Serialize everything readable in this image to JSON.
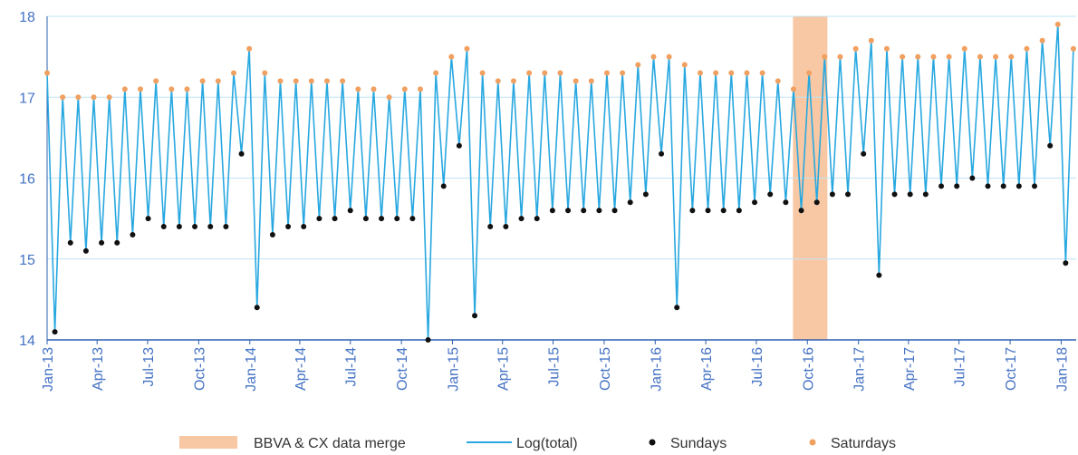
{
  "chart_data": {
    "type": "line",
    "x": [
      0,
      14,
      28,
      42,
      56,
      70,
      84,
      98,
      112,
      126,
      140,
      154,
      168,
      182,
      196,
      210,
      224,
      238,
      252,
      266,
      280,
      294,
      308,
      322,
      336,
      350,
      364,
      378,
      392,
      406,
      420,
      434,
      448,
      462,
      476,
      490,
      504,
      518,
      532,
      546,
      560,
      574,
      588,
      602,
      616,
      630,
      644,
      658,
      672,
      686,
      700,
      714,
      728,
      742,
      756,
      770,
      784,
      798,
      812,
      826,
      840,
      854,
      868,
      882,
      896,
      910,
      924,
      938,
      952,
      966,
      980,
      994,
      1008,
      1022,
      1036,
      1050,
      1064,
      1078,
      1092,
      1106,
      1120,
      1134,
      1148,
      1162,
      1176,
      1190,
      1204,
      1218,
      1232,
      1246,
      1260,
      1274,
      1288,
      1302,
      1316,
      1330,
      1344,
      1358,
      1372,
      1386,
      1400,
      1414,
      1428,
      1442,
      1456,
      1470,
      1484,
      1498,
      1512,
      1526,
      1540,
      1554,
      1568,
      1582,
      1596,
      1610,
      1624,
      1638,
      1652,
      1666,
      1680,
      1694,
      1708,
      1722,
      1736,
      1750,
      1764,
      1778,
      1792,
      1806,
      1820,
      1834,
      1848
    ],
    "series": [
      {
        "name": "Log(total)",
        "color": "#29a8e0",
        "values": [
          17.3,
          14.1,
          17.0,
          15.2,
          17.0,
          15.1,
          17.0,
          15.2,
          17.0,
          15.2,
          17.1,
          15.3,
          17.1,
          15.5,
          17.2,
          15.4,
          17.1,
          15.4,
          17.1,
          15.4,
          17.2,
          15.4,
          17.2,
          15.4,
          17.3,
          16.3,
          17.6,
          14.4,
          17.3,
          15.3,
          17.2,
          15.4,
          17.2,
          15.4,
          17.2,
          15.5,
          17.2,
          15.5,
          17.2,
          15.6,
          17.1,
          15.5,
          17.1,
          15.5,
          17.0,
          15.5,
          17.1,
          15.5,
          17.1,
          14.0,
          17.3,
          15.9,
          17.5,
          16.4,
          17.6,
          14.3,
          17.3,
          15.4,
          17.2,
          15.4,
          17.2,
          15.5,
          17.3,
          15.5,
          17.3,
          15.6,
          17.3,
          15.6,
          17.2,
          15.6,
          17.2,
          15.6,
          17.3,
          15.6,
          17.3,
          15.7,
          17.4,
          15.8,
          17.5,
          16.3,
          17.5,
          14.4,
          17.4,
          15.6,
          17.3,
          15.6,
          17.3,
          15.6,
          17.3,
          15.6,
          17.3,
          15.7,
          17.3,
          15.8,
          17.2,
          15.7,
          17.1,
          15.6,
          17.3,
          15.7,
          17.5,
          15.8,
          17.5,
          15.8,
          17.6,
          16.3,
          17.7,
          14.8,
          17.6,
          15.8,
          17.5,
          15.8,
          17.5,
          15.8,
          17.5,
          15.9,
          17.5,
          15.9,
          17.6,
          16.0,
          17.5,
          15.9,
          17.5,
          15.9,
          17.5,
          15.9,
          17.6,
          15.9,
          17.7,
          16.4,
          17.9,
          14.95,
          17.6
        ]
      },
      {
        "name": "Sundays",
        "color": "#111111",
        "values": [
          null,
          14.1,
          null,
          15.2,
          null,
          15.1,
          null,
          15.2,
          null,
          15.2,
          null,
          15.3,
          null,
          15.5,
          null,
          15.4,
          null,
          15.4,
          null,
          15.4,
          null,
          15.4,
          null,
          15.4,
          null,
          16.3,
          null,
          14.4,
          null,
          15.3,
          null,
          15.4,
          null,
          15.4,
          null,
          15.5,
          null,
          15.5,
          null,
          15.6,
          null,
          15.5,
          null,
          15.5,
          null,
          15.5,
          null,
          15.5,
          null,
          14.0,
          null,
          15.9,
          null,
          16.4,
          null,
          14.3,
          null,
          15.4,
          null,
          15.4,
          null,
          15.5,
          null,
          15.5,
          null,
          15.6,
          null,
          15.6,
          null,
          15.6,
          null,
          15.6,
          null,
          15.6,
          null,
          15.7,
          null,
          15.8,
          null,
          16.3,
          null,
          14.4,
          null,
          15.6,
          null,
          15.6,
          null,
          15.6,
          null,
          15.6,
          null,
          15.7,
          null,
          15.8,
          null,
          15.7,
          null,
          15.6,
          null,
          15.7,
          null,
          15.8,
          null,
          15.8,
          null,
          16.3,
          null,
          14.8,
          null,
          15.8,
          null,
          15.8,
          null,
          15.8,
          null,
          15.9,
          null,
          15.9,
          null,
          16.0,
          null,
          15.9,
          null,
          15.9,
          null,
          15.9,
          null,
          15.9,
          null,
          16.4,
          null,
          14.95,
          null
        ]
      },
      {
        "name": "Saturdays",
        "color": "#f0a060",
        "values": [
          17.3,
          null,
          17.0,
          null,
          17.0,
          null,
          17.0,
          null,
          17.0,
          null,
          17.1,
          null,
          17.1,
          null,
          17.2,
          null,
          17.1,
          null,
          17.1,
          null,
          17.2,
          null,
          17.2,
          null,
          17.3,
          null,
          17.6,
          null,
          17.3,
          null,
          17.2,
          null,
          17.2,
          null,
          17.2,
          null,
          17.2,
          null,
          17.2,
          null,
          17.1,
          null,
          17.1,
          null,
          17.0,
          null,
          17.1,
          null,
          17.1,
          null,
          17.3,
          null,
          17.5,
          null,
          17.6,
          null,
          17.3,
          null,
          17.2,
          null,
          17.2,
          null,
          17.3,
          null,
          17.3,
          null,
          17.3,
          null,
          17.2,
          null,
          17.2,
          null,
          17.3,
          null,
          17.3,
          null,
          17.4,
          null,
          17.5,
          null,
          17.5,
          null,
          17.4,
          null,
          17.3,
          null,
          17.3,
          null,
          17.3,
          null,
          17.3,
          null,
          17.3,
          null,
          17.2,
          null,
          17.1,
          null,
          17.3,
          null,
          17.5,
          null,
          17.5,
          null,
          17.6,
          null,
          17.7,
          null,
          17.6,
          null,
          17.5,
          null,
          17.5,
          null,
          17.5,
          null,
          17.5,
          null,
          17.6,
          null,
          17.5,
          null,
          17.5,
          null,
          17.5,
          null,
          17.6,
          null,
          17.7,
          null,
          17.9,
          null,
          17.6
        ]
      }
    ],
    "band": {
      "name": "BBVA & CX data merge",
      "color": "#f8c8a4",
      "xlim": [
        1343,
        1405
      ]
    },
    "xlim": [
      0,
      1853
    ],
    "xticks": [
      {
        "value": 0,
        "label": "Jan-13"
      },
      {
        "value": 90,
        "label": "Apr-13"
      },
      {
        "value": 181,
        "label": "Jul-13"
      },
      {
        "value": 273,
        "label": "Oct-13"
      },
      {
        "value": 365,
        "label": "Jan-14"
      },
      {
        "value": 455,
        "label": "Apr-14"
      },
      {
        "value": 546,
        "label": "Jul-14"
      },
      {
        "value": 638,
        "label": "Oct-14"
      },
      {
        "value": 730,
        "label": "Jan-15"
      },
      {
        "value": 820,
        "label": "Apr-15"
      },
      {
        "value": 911,
        "label": "Jul-15"
      },
      {
        "value": 1003,
        "label": "Oct-15"
      },
      {
        "value": 1095,
        "label": "Jan-16"
      },
      {
        "value": 1186,
        "label": "Apr-16"
      },
      {
        "value": 1277,
        "label": "Jul-16"
      },
      {
        "value": 1369,
        "label": "Oct-16"
      },
      {
        "value": 1461,
        "label": "Jan-17"
      },
      {
        "value": 1551,
        "label": "Apr-17"
      },
      {
        "value": 1642,
        "label": "Jul-17"
      },
      {
        "value": 1734,
        "label": "Oct-17"
      },
      {
        "value": 1826,
        "label": "Jan-18"
      }
    ],
    "ylim": [
      14,
      18
    ],
    "yticks": [
      14,
      15,
      16,
      17,
      18
    ],
    "grid": true,
    "legend": "bottom"
  }
}
